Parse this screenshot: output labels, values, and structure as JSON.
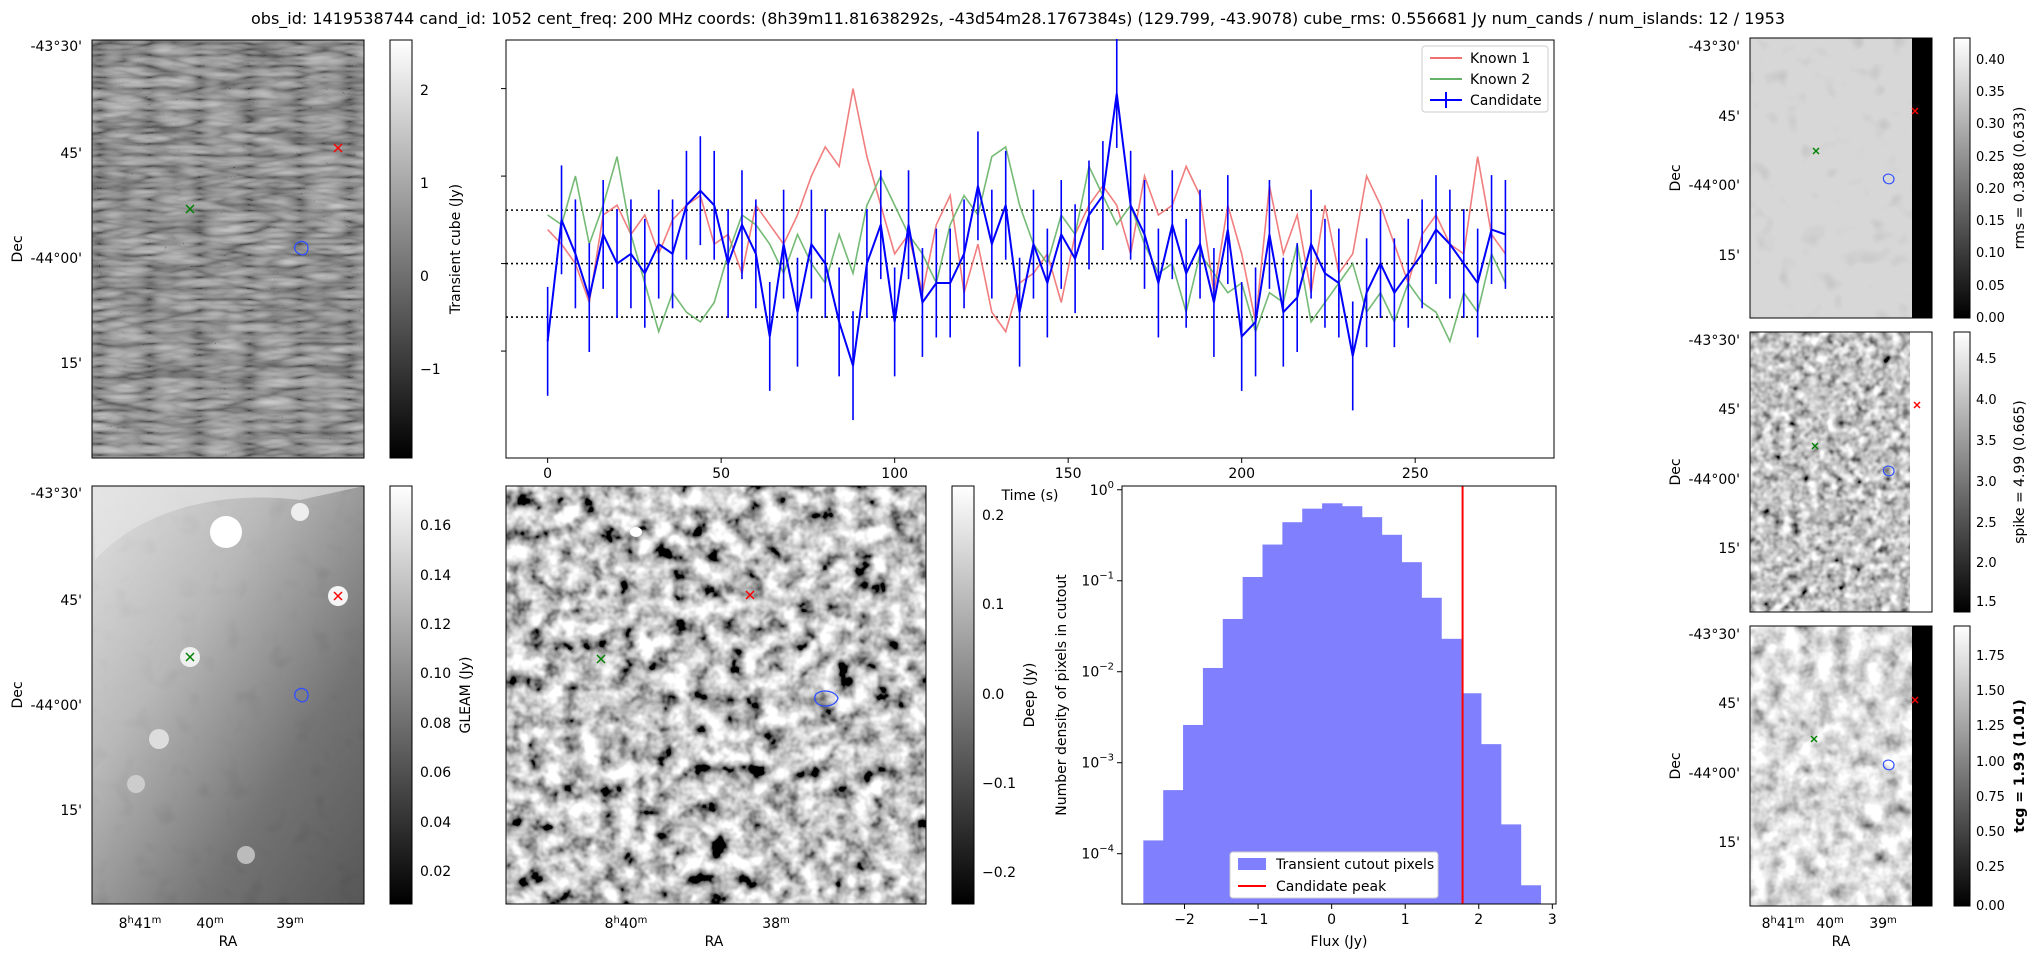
{
  "title": "obs_id: 1419538744 cand_id: 1052 cent_freq: 200 MHz coords: (8h39m11.81638292s, -43d54m28.1767384s) (129.799, -43.9078) cube_rms: 0.556681 Jy num_cands / num_islands: 12 / 1953",
  "colors": {
    "known1": "#f07070",
    "known2": "#66b266",
    "candidate": "#0000ff",
    "hist": "#8080ff",
    "peak": "#ff0000",
    "green_marker": "#008000",
    "red_marker": "#ff0000",
    "blue_contour": "#3050ff"
  },
  "dec_ticks": [
    "-43°30'",
    "45'",
    "-44°00'",
    "15'"
  ],
  "ra_ticks_a": {
    "h": "8",
    "hs": "h",
    "hm": "41",
    "ms": "m",
    "m1": "40",
    "m2": "39"
  },
  "ra_ticks_b": {
    "h": "8",
    "hs": "h",
    "hm": "40",
    "ms": "m",
    "m1": "38"
  },
  "ra_label": "RA",
  "dec_label": "Dec",
  "panels": {
    "transient": {
      "cbar_label": "Transient cube (Jy)",
      "cbar_ticks": [
        "2",
        "1",
        "0",
        "−1"
      ]
    },
    "gleam": {
      "cbar_label": "GLEAM (Jy)",
      "cbar_ticks": [
        "0.16",
        "0.14",
        "0.12",
        "0.10",
        "0.08",
        "0.06",
        "0.04",
        "0.02"
      ]
    },
    "deep": {
      "cbar_label": "Deep (Jy)",
      "cbar_ticks": [
        "0.2",
        "0.1",
        "0.0",
        "−0.1",
        "−0.2"
      ]
    },
    "rms": {
      "cbar_label": "rms = 0.388 (0.633)",
      "cbar_ticks": [
        "0.40",
        "0.35",
        "0.30",
        "0.25",
        "0.20",
        "0.15",
        "0.10",
        "0.05",
        "0.00"
      ]
    },
    "spike": {
      "cbar_label": "spike = 4.99 (0.665)",
      "cbar_ticks": [
        "4.5",
        "4.0",
        "3.5",
        "3.0",
        "2.5",
        "2.0",
        "1.5"
      ]
    },
    "tcg": {
      "cbar_label": "tcg = 1.93 (1.01)",
      "cbar_ticks": [
        "1.75",
        "1.50",
        "1.25",
        "1.00",
        "0.75",
        "0.50",
        "0.25",
        "0.00"
      ]
    }
  },
  "chart_data": [
    {
      "type": "line",
      "title": "",
      "xlabel": "Time (s)",
      "ylabel": "",
      "xlim": [
        -12,
        290
      ],
      "ylim": [
        -2.0,
        2.3
      ],
      "xticks": [
        0,
        50,
        100,
        150,
        200,
        250
      ],
      "hlines": [
        -0.55,
        0.0,
        0.55
      ],
      "legend": [
        "Known 1",
        "Known 2",
        "Candidate"
      ],
      "legend_position": "top-right",
      "x": [
        0,
        4,
        8,
        12,
        16,
        20,
        24,
        28,
        32,
        36,
        40,
        44,
        48,
        52,
        56,
        60,
        64,
        68,
        72,
        76,
        80,
        84,
        88,
        92,
        96,
        100,
        104,
        108,
        112,
        116,
        120,
        124,
        128,
        132,
        136,
        140,
        144,
        148,
        152,
        156,
        160,
        164,
        168,
        172,
        176,
        180,
        184,
        188,
        192,
        196,
        200,
        204,
        208,
        212,
        216,
        220,
        224,
        228,
        232,
        236,
        240,
        244,
        248,
        252,
        256,
        260,
        264,
        268,
        272,
        276
      ],
      "series": [
        {
          "name": "Known 1",
          "values": [
            0.35,
            0.2,
            0.0,
            -0.4,
            0.5,
            0.6,
            0.3,
            0.5,
            0.1,
            0.45,
            0.6,
            0.7,
            0.2,
            0.3,
            -0.1,
            0.6,
            0.4,
            0.2,
            0.5,
            0.9,
            1.2,
            1.0,
            1.8,
            1.1,
            0.6,
            0.1,
            0.3,
            -0.3,
            0.4,
            0.7,
            -0.3,
            0.2,
            -0.5,
            -0.7,
            -0.2,
            -0.1,
            0.1,
            -0.4,
            0.3,
            0.6,
            0.8,
            0.6,
            0.1,
            0.9,
            0.5,
            0.6,
            1.0,
            0.7,
            -0.3,
            0.6,
            0.1,
            -0.6,
            0.8,
            0.1,
            0.5,
            -0.3,
            0.6,
            -0.1,
            0.1,
            0.9,
            0.6,
            0.2,
            -0.2,
            0.3,
            0.5,
            0.2,
            0.1,
            1.1,
            0.3,
            0.1
          ]
        },
        {
          "name": "Known 2",
          "values": [
            0.5,
            0.4,
            0.9,
            0.2,
            0.6,
            1.1,
            0.3,
            -0.2,
            -0.7,
            -0.3,
            -0.5,
            -0.6,
            -0.4,
            0.1,
            0.5,
            0.4,
            0.2,
            -0.1,
            0.3,
            0.0,
            -0.2,
            0.3,
            -0.1,
            0.6,
            0.9,
            0.6,
            0.3,
            0.1,
            -0.2,
            0.4,
            0.7,
            0.5,
            1.1,
            1.2,
            0.6,
            0.2,
            0.0,
            0.5,
            0.3,
            1.0,
            0.7,
            0.4,
            0.6,
            0.2,
            -0.1,
            0.0,
            -0.5,
            0.1,
            -0.1,
            -0.3,
            -0.2,
            -0.7,
            -0.3,
            -0.4,
            0.2,
            -0.6,
            -0.4,
            -0.2,
            0.0,
            -0.5,
            -0.3,
            -0.6,
            -0.2,
            -0.4,
            -0.5,
            -0.8,
            -0.3,
            -0.5,
            0.1,
            -0.2
          ]
        },
        {
          "name": "Candidate",
          "values": [
            -0.8,
            0.45,
            0.1,
            -0.35,
            0.3,
            0.0,
            0.1,
            -0.1,
            0.2,
            0.1,
            0.6,
            0.75,
            0.6,
            0.0,
            0.4,
            0.1,
            -0.75,
            0.2,
            -0.5,
            0.2,
            0.0,
            -0.6,
            -1.05,
            0.0,
            0.4,
            -0.6,
            0.4,
            -0.4,
            -0.2,
            -0.2,
            0.1,
            0.8,
            0.2,
            0.6,
            -0.5,
            0.2,
            -0.2,
            0.3,
            0.05,
            0.5,
            0.7,
            1.75,
            0.6,
            0.3,
            -0.2,
            0.4,
            -0.1,
            0.2,
            -0.4,
            0.35,
            -0.75,
            -0.6,
            0.3,
            -0.5,
            -0.35,
            0.2,
            -0.1,
            -0.2,
            -0.95,
            -0.3,
            0.0,
            -0.3,
            -0.1,
            0.1,
            0.35,
            0.2,
            0.0,
            -0.2,
            0.35,
            0.3
          ]
        }
      ]
    },
    {
      "type": "bar",
      "title": "",
      "xlabel": "Flux (Jy)",
      "ylabel": "Number density of pixels in cutout",
      "yscale": "log",
      "xlim": [
        -2.85,
        3.05
      ],
      "ylim": [
        2.8e-05,
        1.1
      ],
      "xticks": [
        -2,
        -1,
        0,
        1,
        2,
        3
      ],
      "yticks": [
        0.0001,
        0.001,
        0.01,
        0.1,
        1
      ],
      "bin_edges": [
        -2.56,
        -2.29,
        -2.02,
        -1.75,
        -1.48,
        -1.21,
        -0.94,
        -0.67,
        -0.4,
        -0.13,
        0.14,
        0.41,
        0.68,
        0.95,
        1.22,
        1.49,
        1.76,
        2.03,
        2.3,
        2.57,
        2.84
      ],
      "values": [
        0.00014,
        0.0005,
        0.0026,
        0.011,
        0.038,
        0.11,
        0.25,
        0.44,
        0.62,
        0.71,
        0.66,
        0.5,
        0.32,
        0.16,
        0.065,
        0.023,
        0.0058,
        0.0016,
        0.00021,
        4.5e-05
      ],
      "peak_line": 1.78,
      "legend": [
        "Transient cutout pixels",
        "Candidate peak"
      ],
      "legend_position": "bottom-center"
    }
  ]
}
